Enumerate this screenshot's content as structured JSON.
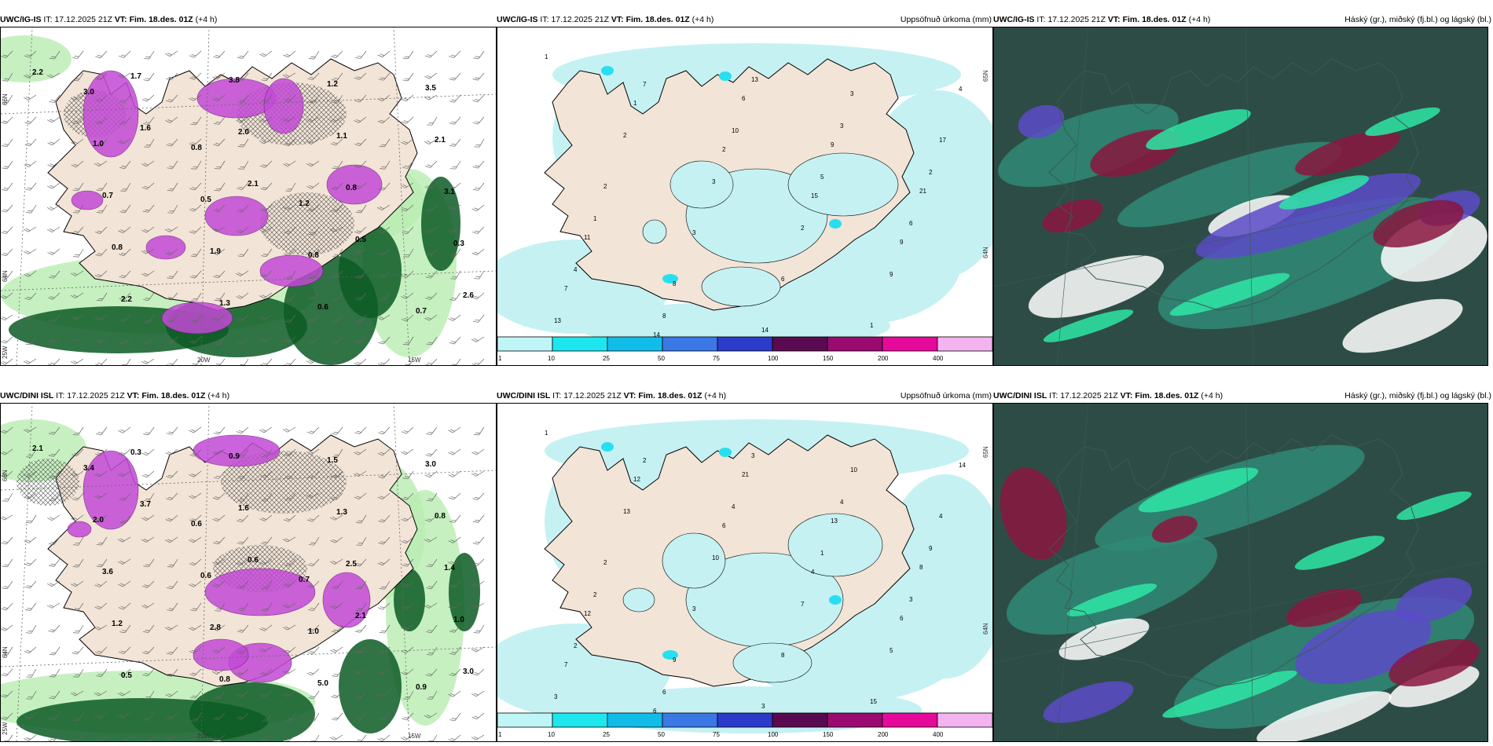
{
  "rows": [
    {
      "model": "UWC/IG-IS",
      "it_label": "IT:",
      "it_value": "17.12.2025 21Z",
      "vt_label": "VT:",
      "vt_value": "Fim. 18.des. 01Z",
      "lead": "(+4 h)"
    },
    {
      "model": "UWC/DINI ISL",
      "it_label": "IT:",
      "it_value": "17.12.2025 21Z",
      "vt_label": "VT:",
      "vt_value": "Fim. 18.des. 01Z",
      "lead": "(+4 h)"
    }
  ],
  "precip_title": "Uppsöfnuð úrkoma (mm)",
  "cloud_title": "Háský (gr.), miðský (fj.bl.) og lágský (bl.)",
  "colorbar": {
    "ticks": [
      "1",
      "10",
      "25",
      "50",
      "75",
      "100",
      "150",
      "200",
      "400"
    ],
    "colors": [
      "#bff5f7",
      "#1de6ee",
      "#11bde8",
      "#3b78e6",
      "#2c3bc9",
      "#5a0a50",
      "#9a0a70",
      "#e60a9a",
      "#f2b3ef"
    ]
  },
  "map_labels": {
    "lat_a": "66N",
    "lat_b": "64N",
    "lon_a": "25W",
    "lon_b": "20W",
    "lon_c": "15W",
    "lat_right_a": "65N",
    "lat_right_b": "64N"
  },
  "colors": {
    "land": "#f2e4d6",
    "precip_light": "#c5f1f3",
    "precip_mid": "#27dff0",
    "green_light": "#b8ecb0",
    "green_dark": "#0c5a24",
    "magenta": "#c34ad6",
    "cloud_dark": "#2e4c46",
    "cloud_teal": "#2f8a76",
    "cloud_mint": "#2ee6a6",
    "cloud_purple": "#5b4bc8",
    "cloud_red": "#8a1640"
  },
  "left_top_values": [
    "2.2",
    "1.6",
    "2.1",
    "0.5",
    "2.6",
    "1.7",
    "2.0",
    "0.8",
    "0.3",
    "2.2",
    "3.8",
    "1.1",
    "3.1",
    "0.8",
    "1.3",
    "1.2",
    "2.1",
    "0.7",
    "1.9",
    "0.6",
    "3.5",
    "1.0",
    "0.5",
    "0.8",
    "0.7",
    "3.0",
    "0.8",
    "1.2"
  ],
  "left_bottom_values": [
    "2.1",
    "3.7",
    "0.6",
    "2.1",
    "3.0",
    "0.3",
    "1.6",
    "2.5",
    "1.0",
    "0.5",
    "0.9",
    "1.3",
    "1.4",
    "1.2",
    "0.8",
    "1.5",
    "0.8",
    "3.6",
    "2.8",
    "5.0",
    "3.0",
    "2.0",
    "0.6",
    "1.0",
    "0.9",
    "3.4",
    "0.6",
    "0.7"
  ],
  "mid_top_values": [
    "1",
    "1",
    "2",
    "15",
    "9",
    "7",
    "14",
    "6",
    "9",
    "21",
    "11",
    "8",
    "14",
    "3",
    "17",
    "2",
    "3",
    "6",
    "1",
    "4",
    "2",
    "3",
    "2",
    "9",
    "13",
    "7",
    "10",
    "5",
    "6",
    "4",
    "8",
    "13",
    "3",
    "2",
    "1"
  ],
  "mid_bottom_values": [
    "1",
    "12",
    "6",
    "4",
    "6",
    "7",
    "6",
    "21",
    "13",
    "8",
    "12",
    "9",
    "3",
    "10",
    "4",
    "2",
    "3",
    "8",
    "15",
    "14",
    "13",
    "10",
    "7",
    "5",
    "3",
    "2",
    "4",
    "1",
    "3",
    "2",
    "6",
    "3",
    "4",
    "9",
    "2"
  ]
}
